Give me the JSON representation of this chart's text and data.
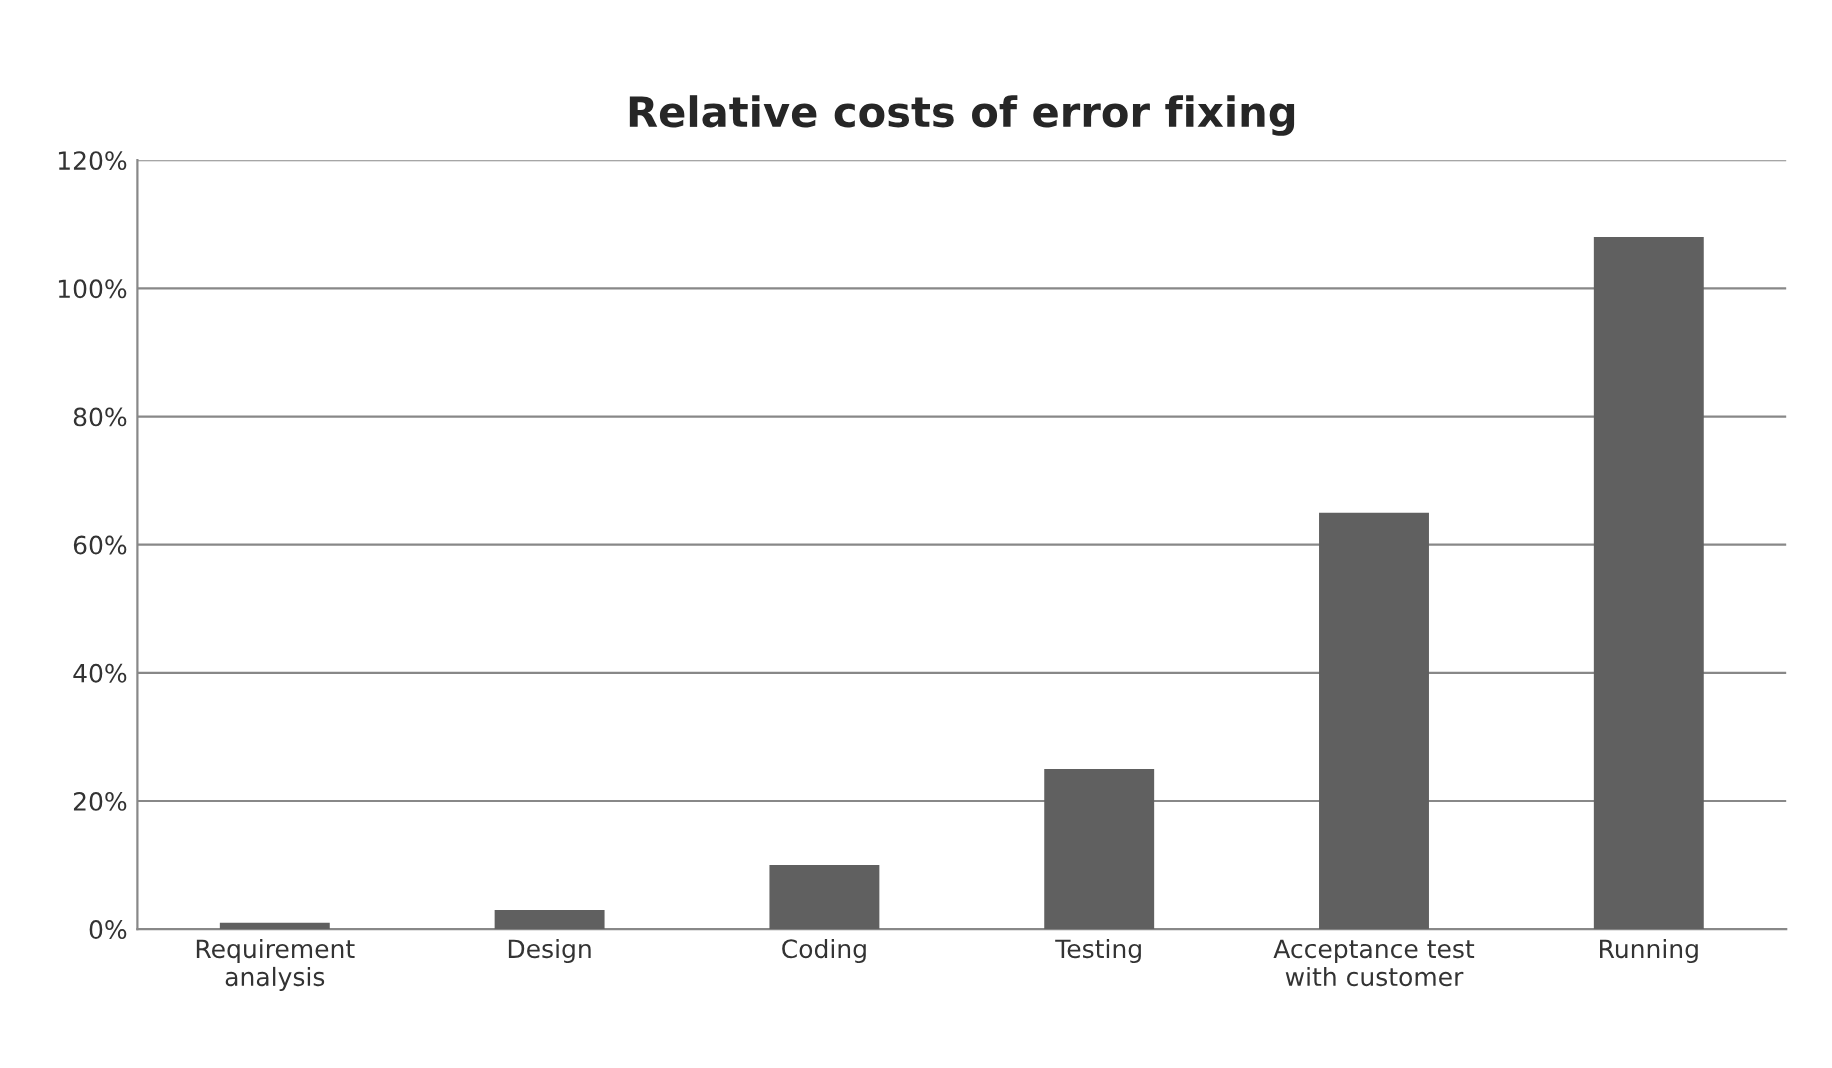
{
  "chart_data": {
    "type": "bar",
    "title": "Relative costs of error fixing",
    "categories": [
      "Requirement\nanalysis",
      "Design",
      "Coding",
      "Testing",
      "Acceptance test\nwith customer",
      "Running"
    ],
    "values": [
      1,
      3,
      10,
      25,
      65,
      108
    ],
    "color": "#606060",
    "ylim": [
      0,
      120
    ],
    "yticks": [
      {
        "value": 0,
        "label": "0%"
      },
      {
        "value": 20,
        "label": "20%"
      },
      {
        "value": 40,
        "label": "40%"
      },
      {
        "value": 60,
        "label": "60%"
      },
      {
        "value": 80,
        "label": "80%"
      },
      {
        "value": 100,
        "label": "100%"
      },
      {
        "value": 120,
        "label": "120%"
      }
    ],
    "grid": "y"
  }
}
